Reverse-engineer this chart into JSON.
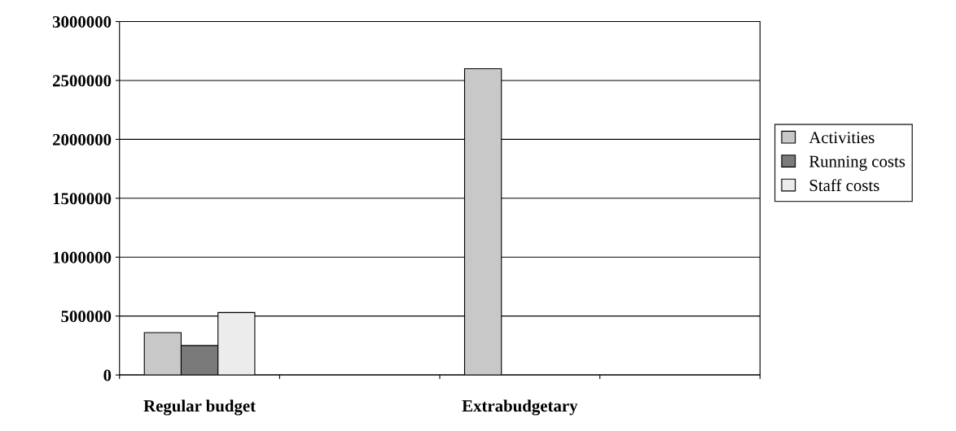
{
  "chart_data": {
    "type": "bar",
    "categories": [
      "Regular budget",
      null,
      "Extrabudgetary",
      null
    ],
    "series": [
      {
        "name": "Activities",
        "color": "#c8c8c8",
        "values": [
          360000,
          null,
          2600000,
          null
        ]
      },
      {
        "name": "Running costs",
        "color": "#7a7a7a",
        "values": [
          250000,
          null,
          null,
          null
        ]
      },
      {
        "name": "Staff costs",
        "color": "#ececec",
        "values": [
          530000,
          null,
          null,
          null
        ]
      }
    ],
    "ylim": [
      0,
      3000000
    ],
    "yticks": [
      0,
      500000,
      1000000,
      1500000,
      2000000,
      2500000,
      3000000
    ],
    "grid": "y",
    "legend": "right"
  }
}
